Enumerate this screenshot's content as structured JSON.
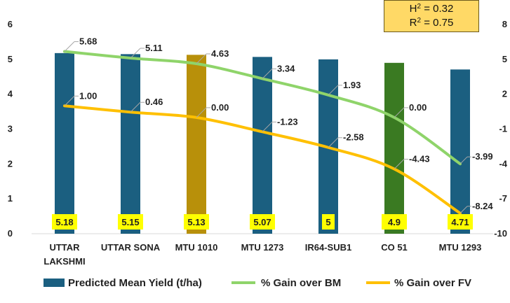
{
  "stats": {
    "h2_symbol": "H",
    "h2_exp": "2",
    "h2_rest": " = 0.32",
    "r2_symbol": "R",
    "r2_exp": "2",
    "r2_rest": " = 0.75"
  },
  "chart_data": {
    "type": "bar",
    "categories": [
      [
        "UTTAR",
        "LAKSHMI"
      ],
      [
        "UTTAR SONA"
      ],
      [
        "MTU 1010"
      ],
      [
        "MTU 1273"
      ],
      [
        "IR64-SUB1"
      ],
      [
        "CO 51"
      ],
      [
        "MTU 1293"
      ]
    ],
    "bar_series": {
      "name": "Predicted Mean Yield (t/ha)",
      "values": [
        5.18,
        5.15,
        5.13,
        5.07,
        5,
        4.9,
        4.71
      ],
      "value_labels": [
        "5.18",
        "5.15",
        "5.13",
        "5.07",
        "5",
        "4.9",
        "4.71"
      ],
      "colors": [
        "#1b5f80",
        "#1b5f80",
        "#b8900a",
        "#1b5f80",
        "#1b5f80",
        "#3a7a22",
        "#1b5f80"
      ]
    },
    "line_series": [
      {
        "name": "% Gain over BM",
        "color": "#8fd46a",
        "values": [
          5.68,
          5.11,
          4.63,
          3.34,
          1.93,
          0.0,
          -3.99
        ],
        "labels": [
          "5.68",
          "5.11",
          "4.63",
          "3.34",
          "1.93",
          "0.00",
          "-3.99"
        ]
      },
      {
        "name": "% Gain over FV",
        "color": "#ffc000",
        "values": [
          1.0,
          0.46,
          0.0,
          -1.23,
          -2.58,
          -4.43,
          -8.24
        ],
        "labels": [
          "1.00",
          "0.46",
          "0.00",
          "-1.23",
          "-2.58",
          "-4.43",
          "-8.24"
        ]
      }
    ],
    "y_left": {
      "ylim": [
        0,
        6
      ],
      "ticks": [
        "0",
        "1",
        "2",
        "3",
        "4",
        "5",
        "6"
      ]
    },
    "y_right": {
      "ylim": [
        -10,
        8
      ],
      "ticks": [
        "-10",
        "-7",
        "-4",
        "-1",
        "2",
        "5",
        "8"
      ]
    },
    "grid": false,
    "legend_position": "bottom"
  }
}
